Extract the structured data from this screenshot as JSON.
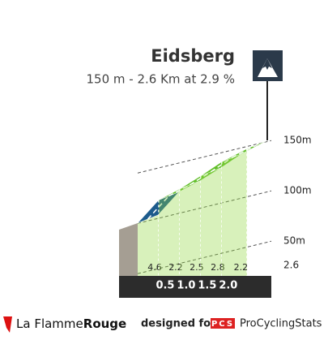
{
  "chart_data": {
    "type": "profile",
    "title": "Eidsberg",
    "subtitle": "150 m - 2.6 Km at 2.9 %",
    "xlim": [
      0,
      2.6
    ],
    "xticks": [
      0.5,
      {
        "value": 1,
        "label": "1.0"
      },
      1.5,
      {
        "value": 2,
        "label": "2.0"
      }
    ],
    "elevations": [
      76,
      99,
      110,
      123,
      137,
      150
    ],
    "gradients": [
      4.6,
      2.2,
      2.5,
      2.8,
      2.2
    ],
    "yticks": [
      {
        "value": 50,
        "label": "50m"
      },
      {
        "value": 100,
        "label": "100m"
      },
      {
        "value": 150,
        "label": "150m"
      }
    ],
    "colors": {
      "first": "#1d5b8c",
      "top": "#62bf2a",
      "front": "#8fd83c"
    }
  },
  "footer": {
    "brand_light": "La Flamme",
    "brand_bold": "Rouge",
    "designed": "designed for",
    "pcs": "PCS",
    "site": "ProCyclingStats"
  }
}
